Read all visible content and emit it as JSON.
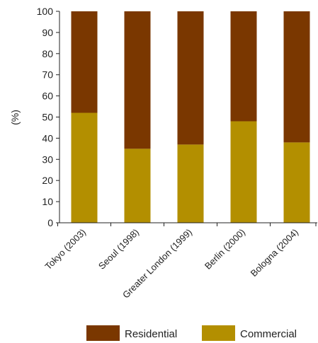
{
  "chart_data": {
    "type": "bar",
    "stacked": true,
    "ylabel": "(%)",
    "xlabel": "",
    "ylim": [
      0,
      100
    ],
    "yticks": [
      0,
      10,
      20,
      30,
      40,
      50,
      60,
      70,
      80,
      90,
      100
    ],
    "categories": [
      "Tokyo (2003)",
      "Seoul (1998)",
      "Greater London (1999)",
      "Berlin (2000)",
      "Bologna (2004)"
    ],
    "series": [
      {
        "name": "Commercial",
        "color": "#b38f00",
        "values": [
          52,
          35,
          37,
          48,
          38
        ]
      },
      {
        "name": "Residential",
        "color": "#7a3700",
        "values": [
          48,
          65,
          63,
          52,
          62
        ]
      }
    ],
    "legend": {
      "placement": "bottom",
      "order": [
        "Residential",
        "Commercial"
      ]
    },
    "grid": false
  }
}
